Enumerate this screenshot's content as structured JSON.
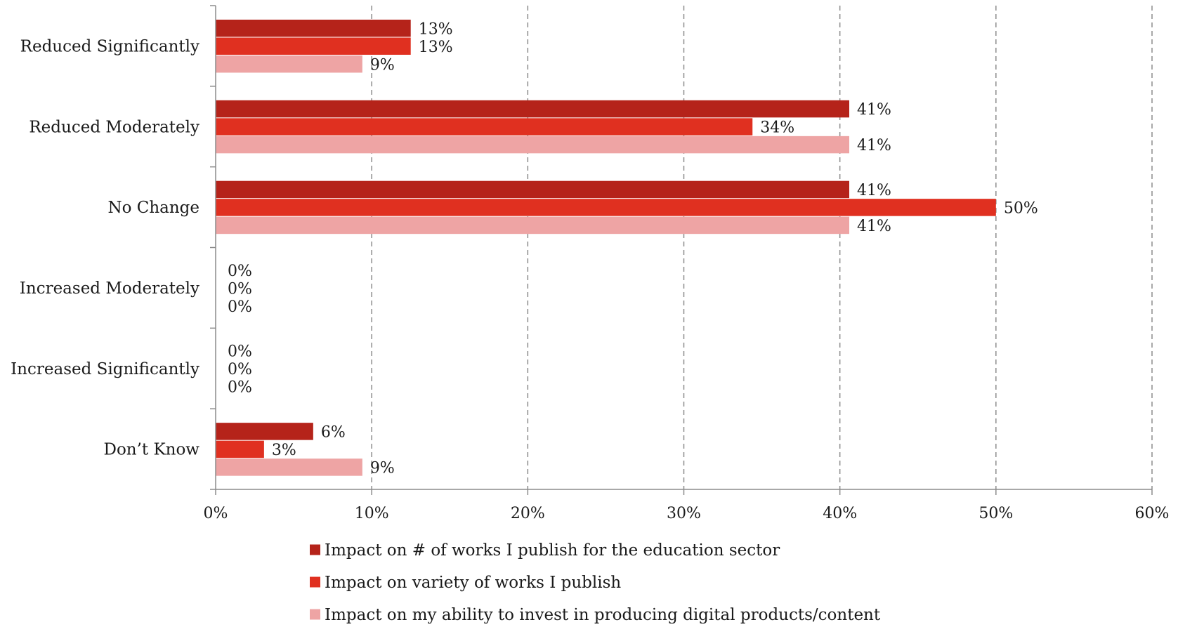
{
  "chart_data": {
    "type": "bar",
    "orientation": "horizontal",
    "categories": [
      "Reduced Significantly",
      "Reduced Moderately",
      "No Change",
      "Increased Moderately",
      "Increased Significantly",
      "Don’t Know"
    ],
    "series": [
      {
        "name": "Impact on # of works I publish for the education sector",
        "color": "#b5231a",
        "values": [
          12.5,
          40.6,
          40.6,
          0,
          0,
          6.25
        ],
        "labels": [
          "13%",
          "41%",
          "41%",
          "0%",
          "0%",
          "6%"
        ]
      },
      {
        "name": "Impact on variety of works I publish",
        "color": "#e03020",
        "values": [
          12.5,
          34.4,
          50.0,
          0,
          0,
          3.1
        ],
        "labels": [
          "13%",
          "34%",
          "50%",
          "0%",
          "0%",
          "3%"
        ]
      },
      {
        "name": "Impact on my ability to invest in producing digital products/content",
        "color": "#eea4a4",
        "values": [
          9.4,
          40.6,
          40.6,
          0,
          0,
          9.4
        ],
        "labels": [
          "9%",
          "41%",
          "41%",
          "0%",
          "0%",
          "9%"
        ]
      }
    ],
    "xlim": [
      0,
      60
    ],
    "xticks": [
      0,
      10,
      20,
      30,
      40,
      50,
      60
    ],
    "xtick_labels": [
      "0%",
      "10%",
      "20%",
      "30%",
      "40%",
      "50%",
      "60%"
    ],
    "grid": "vertical-dashed",
    "legend_position": "bottom",
    "title": "",
    "xlabel": "",
    "ylabel": ""
  }
}
